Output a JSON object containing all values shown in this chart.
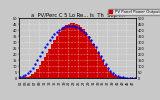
{
  "title": "a  PV/Perc C 5 Lo Re... Is  Th  Sep I...",
  "legend_pv": "PV Panel Power Output",
  "legend_solar": "Solar Radiation",
  "bar_color": "#cc0000",
  "line_color": "#0000ee",
  "background_color": "#c8c8c8",
  "plot_bg": "#c8c8c8",
  "grid_color": "#ffffff",
  "bar_heights": [
    0.3,
    0.5,
    0.8,
    1.2,
    2.0,
    3.2,
    5.0,
    7.5,
    10.5,
    14.0,
    17.5,
    21.0,
    24.5,
    28.0,
    31.5,
    35.0,
    38.0,
    40.5,
    42.5,
    44.0,
    45.0,
    45.5,
    45.5,
    45.0,
    44.0,
    42.5,
    40.5,
    38.0,
    35.0,
    31.5,
    28.0,
    24.5,
    21.0,
    17.5,
    14.0,
    10.5,
    7.5,
    5.0,
    3.2,
    2.0,
    1.2,
    0.8,
    0.5,
    0.3,
    0.15,
    0.08,
    0.04,
    0.02
  ],
  "line_heights": [
    1.0,
    1.5,
    2.5,
    4.0,
    6.0,
    8.5,
    11.5,
    15.0,
    18.5,
    22.0,
    25.5,
    28.5,
    31.5,
    34.0,
    36.5,
    38.5,
    40.0,
    41.5,
    42.5,
    43.0,
    43.5,
    43.5,
    43.0,
    42.5,
    41.5,
    40.0,
    38.5,
    36.5,
    34.0,
    31.5,
    28.5,
    25.5,
    22.0,
    18.5,
    15.0,
    11.5,
    8.5,
    6.0,
    4.0,
    2.5,
    1.5,
    1.0,
    0.7,
    0.4,
    0.25,
    0.15,
    0.08,
    0.04
  ],
  "ylim_left": [
    0,
    50
  ],
  "ylim_right": [
    0,
    500
  ],
  "y_ticks_left": [
    0,
    5,
    10,
    15,
    20,
    25,
    30,
    35,
    40,
    45,
    50
  ],
  "y_ticks_right": [
    0,
    50,
    100,
    150,
    200,
    250,
    300,
    350,
    400,
    450,
    500
  ],
  "x_tick_positions": [
    0,
    2,
    4,
    6,
    8,
    10,
    12,
    14,
    16,
    18,
    20,
    22,
    24,
    26,
    28,
    30,
    32,
    34,
    36,
    38,
    40,
    42,
    44,
    46
  ],
  "x_tick_labels": [
    "01",
    "03",
    "05",
    "07",
    "09",
    "11",
    "13",
    "15",
    "17",
    "19",
    "21",
    "23",
    "25",
    "27",
    "29",
    "31",
    "33",
    "35",
    "37",
    "39",
    "41",
    "43",
    "45",
    "47"
  ],
  "n_bars": 48,
  "title_fontsize": 3.8,
  "tick_fontsize": 2.5,
  "legend_fontsize": 2.8
}
